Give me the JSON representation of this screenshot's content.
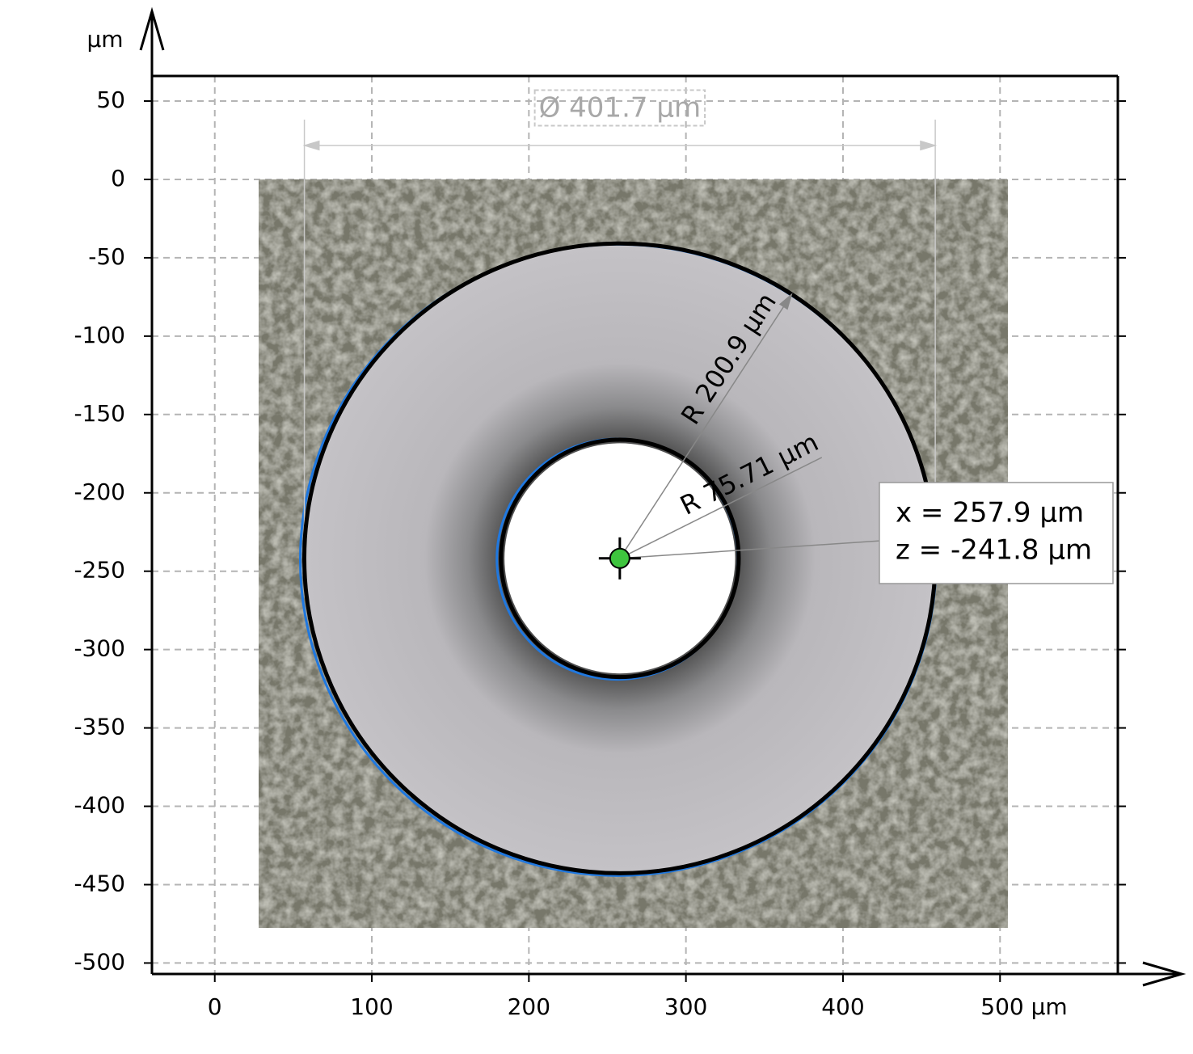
{
  "chart_data": {
    "type": "circle-fit",
    "y_label": "µm",
    "xlim": [
      -40,
      575
    ],
    "ylim": [
      -507,
      66
    ],
    "xticks": [
      0,
      100,
      200,
      300,
      400,
      {
        "value": 500,
        "label": "500 µm"
      }
    ],
    "yticks": [
      50,
      0,
      -50,
      -100,
      -150,
      -200,
      -250,
      -300,
      -350,
      -400,
      -450,
      -500
    ],
    "grid": true,
    "center": {
      "x": 257.9,
      "z": -241.8,
      "x_label": "x = 257.9 µm",
      "z_label": "z = -241.8 µm",
      "color": "#3ec43e"
    },
    "circles": [
      {
        "radius": 200.9,
        "label": "R 200.9 µm",
        "color": "#000000"
      },
      {
        "radius": 75.71,
        "label": "R 75.71 µm",
        "color": "#000000"
      }
    ],
    "diameter": {
      "value": 401.7,
      "label": "Ø 401.7 µm"
    }
  }
}
